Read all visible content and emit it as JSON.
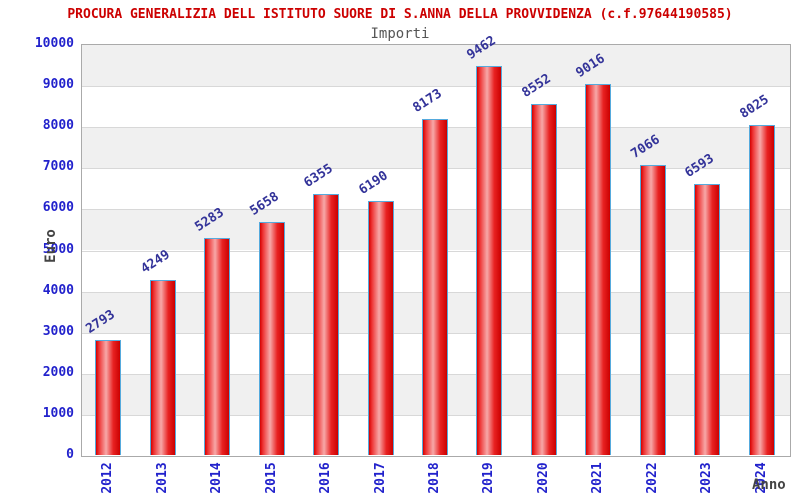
{
  "chart_data": {
    "type": "bar",
    "title": "PROCURA GENERALIZIA DELL ISTITUTO SUORE DI S.ANNA DELLA PROVVIDENZA (c.f.97644190585)",
    "subtitle": "Importi",
    "xlabel": "Anno",
    "ylabel": "Euro",
    "categories": [
      "2012",
      "2013",
      "2014",
      "2015",
      "2016",
      "2017",
      "2018",
      "2019",
      "2020",
      "2021",
      "2022",
      "2023",
      "2024"
    ],
    "values": [
      2793,
      4249,
      5283,
      5658,
      6355,
      6190,
      8173,
      9462,
      8552,
      9016,
      7066,
      6593,
      8025
    ],
    "ylim": [
      0,
      10000
    ],
    "ytick_step": 1000,
    "grid": true,
    "legend": "none",
    "colors": {
      "title": "#cc0000",
      "subtitle": "#555555",
      "axis_title": "#444444",
      "tick_label": "#2222cc",
      "value_label": "#333399",
      "bar_border": "#55aadd",
      "bar_gradient": [
        "#d40000",
        "#ee3333",
        "#f7a8a8",
        "#e82222",
        "#cc0000"
      ],
      "band_shaded": "#f0f0f0",
      "band_plain": "#ffffff",
      "gridline": "#d8d8d8",
      "plot_border": "#aaaaaa"
    }
  }
}
